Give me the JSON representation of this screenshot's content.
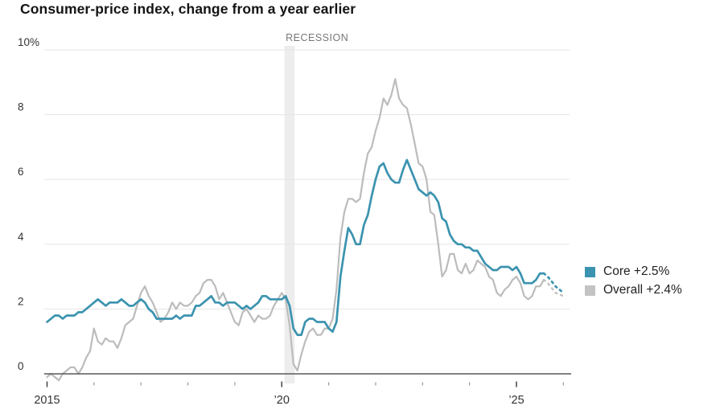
{
  "chart_data": {
    "type": "line",
    "title": "Consumer-price index, change from a year earlier",
    "x_unit": "month",
    "x_start": "2015-01",
    "x_end_solid": "2025-08",
    "ylim": [
      0,
      10
    ],
    "grid": true,
    "legend_position": "right",
    "y_ticks": [
      {
        "value": 10,
        "label": "10%"
      },
      {
        "value": 8,
        "label": "8"
      },
      {
        "value": 6,
        "label": "6"
      },
      {
        "value": 4,
        "label": "4"
      },
      {
        "value": 2,
        "label": "2"
      },
      {
        "value": 0,
        "label": "0"
      }
    ],
    "x_ticks": [
      {
        "year": 2015,
        "label": "2015",
        "major": true
      },
      {
        "year": 2016,
        "label": "",
        "major": false
      },
      {
        "year": 2017,
        "label": "",
        "major": false
      },
      {
        "year": 2018,
        "label": "",
        "major": false
      },
      {
        "year": 2019,
        "label": "",
        "major": false
      },
      {
        "year": 2020,
        "label": "’20",
        "major": true
      },
      {
        "year": 2021,
        "label": "",
        "major": false
      },
      {
        "year": 2022,
        "label": "",
        "major": false
      },
      {
        "year": 2023,
        "label": "",
        "major": false
      },
      {
        "year": 2024,
        "label": "",
        "major": false
      },
      {
        "year": 2025,
        "label": "’25",
        "major": true
      },
      {
        "year": 2026,
        "label": "",
        "major": false
      }
    ],
    "recession_band": {
      "label": "RECESSION",
      "start": "2020-02",
      "end": "2020-04",
      "color": "#ededed",
      "label_color": "#777777"
    },
    "series": [
      {
        "name": "Overall",
        "legend_label": "Overall +2.4%",
        "latest_value": "+2.4%",
        "color": "#bcbcbc",
        "line_width": 2.2,
        "forecast_style": "dotted",
        "monthly_values": [
          -0.1,
          0.0,
          -0.1,
          -0.2,
          0.0,
          0.1,
          0.2,
          0.2,
          0.0,
          0.2,
          0.5,
          0.7,
          1.4,
          1.0,
          0.9,
          1.1,
          1.0,
          1.0,
          0.8,
          1.1,
          1.5,
          1.6,
          1.7,
          2.1,
          2.5,
          2.7,
          2.4,
          2.2,
          1.9,
          1.6,
          1.7,
          1.9,
          2.2,
          2.0,
          2.2,
          2.1,
          2.1,
          2.2,
          2.4,
          2.5,
          2.8,
          2.9,
          2.9,
          2.7,
          2.3,
          2.5,
          2.2,
          1.9,
          1.6,
          1.5,
          1.9,
          2.0,
          1.8,
          1.6,
          1.8,
          1.7,
          1.7,
          1.8,
          2.1,
          2.3,
          2.5,
          2.3,
          1.5,
          0.3,
          0.1,
          0.6,
          1.0,
          1.3,
          1.4,
          1.2,
          1.2,
          1.4,
          1.4,
          1.7,
          2.6,
          4.2,
          5.0,
          5.4,
          5.4,
          5.3,
          5.4,
          6.2,
          6.8,
          7.0,
          7.5,
          7.9,
          8.5,
          8.3,
          8.6,
          9.1,
          8.5,
          8.3,
          8.2,
          7.7,
          7.1,
          6.5,
          6.4,
          6.0,
          5.0,
          4.9,
          4.0,
          3.0,
          3.2,
          3.7,
          3.7,
          3.2,
          3.1,
          3.4,
          3.1,
          3.2,
          3.5,
          3.4,
          3.3,
          3.0,
          2.9,
          2.5,
          2.4,
          2.6,
          2.7,
          2.9,
          3.0,
          2.8,
          2.4,
          2.3,
          2.4,
          2.7,
          2.7,
          2.9
        ],
        "forecast_values": [
          2.8,
          2.65,
          2.5,
          2.45,
          2.4
        ]
      },
      {
        "name": "Core",
        "legend_label": "Core +2.5%",
        "latest_value": "+2.5%",
        "color": "#3b93af",
        "line_width": 2.7,
        "forecast_style": "dotted",
        "monthly_values": [
          1.6,
          1.7,
          1.8,
          1.8,
          1.7,
          1.8,
          1.8,
          1.8,
          1.9,
          1.9,
          2.0,
          2.1,
          2.2,
          2.3,
          2.2,
          2.1,
          2.2,
          2.2,
          2.2,
          2.3,
          2.2,
          2.1,
          2.1,
          2.2,
          2.3,
          2.2,
          2.0,
          1.9,
          1.7,
          1.7,
          1.7,
          1.7,
          1.7,
          1.8,
          1.7,
          1.8,
          1.8,
          1.8,
          2.1,
          2.1,
          2.2,
          2.3,
          2.4,
          2.2,
          2.2,
          2.1,
          2.2,
          2.2,
          2.2,
          2.1,
          2.0,
          2.1,
          2.0,
          2.1,
          2.2,
          2.4,
          2.4,
          2.3,
          2.3,
          2.3,
          2.3,
          2.4,
          2.1,
          1.4,
          1.2,
          1.2,
          1.6,
          1.7,
          1.7,
          1.6,
          1.6,
          1.6,
          1.4,
          1.3,
          1.6,
          3.0,
          3.8,
          4.5,
          4.3,
          4.0,
          4.0,
          4.6,
          4.9,
          5.5,
          6.0,
          6.4,
          6.5,
          6.2,
          6.0,
          5.9,
          5.9,
          6.3,
          6.6,
          6.3,
          6.0,
          5.7,
          5.6,
          5.5,
          5.6,
          5.5,
          5.3,
          4.8,
          4.7,
          4.3,
          4.1,
          4.0,
          4.0,
          3.9,
          3.9,
          3.8,
          3.8,
          3.6,
          3.4,
          3.3,
          3.2,
          3.2,
          3.3,
          3.3,
          3.3,
          3.2,
          3.3,
          3.1,
          2.8,
          2.8,
          2.8,
          2.9,
          3.1,
          3.1
        ],
        "forecast_values": [
          3.0,
          2.85,
          2.7,
          2.6,
          2.5
        ]
      }
    ],
    "colors": {
      "grid": "#e5e5e5",
      "axis": "#59595b",
      "tick_major": "#444444",
      "tick_minor": "#999999",
      "axis_label": "#333333",
      "title": "#141414"
    }
  }
}
